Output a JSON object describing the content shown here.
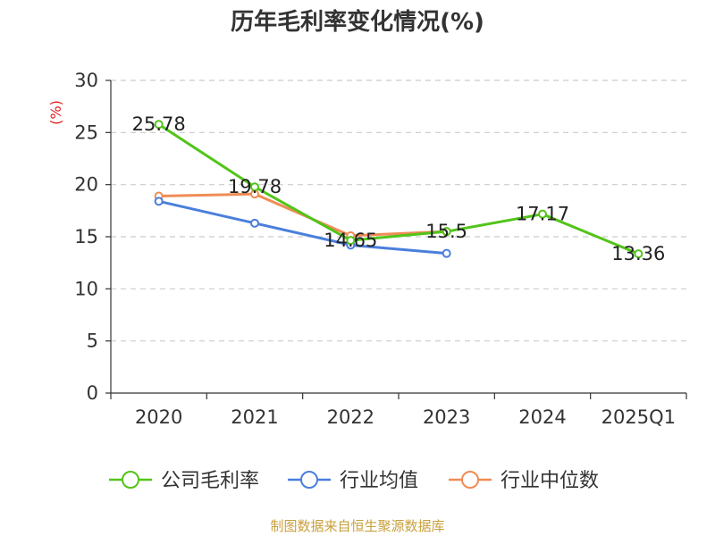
{
  "chart_data": {
    "type": "line",
    "title": "历年毛利率变化情况(%)",
    "ylabel": "(%)",
    "xlabel": "",
    "categories": [
      "2020",
      "2021",
      "2022",
      "2023",
      "2024",
      "2025Q1"
    ],
    "ylim": [
      0,
      30
    ],
    "yticks": [
      0,
      5,
      10,
      15,
      20,
      25,
      30
    ],
    "grid": "horizontal dashed",
    "legend_position": "bottom",
    "series": [
      {
        "name": "公司毛利率",
        "color": "#52c41a",
        "values": [
          25.78,
          19.78,
          14.65,
          15.5,
          17.17,
          13.36
        ],
        "show_labels": true
      },
      {
        "name": "行业均值",
        "color": "#4a7fdc",
        "values": [
          18.4,
          16.3,
          14.2,
          13.4,
          null,
          null
        ],
        "show_labels": false
      },
      {
        "name": "行业中位数",
        "color": "#f08c55",
        "values": [
          18.9,
          19.1,
          15.1,
          15.5,
          null,
          null
        ],
        "show_labels": false
      }
    ],
    "data_labels": [
      "25.78",
      "19.78",
      "14.65",
      "15.5",
      "17.17",
      "13.36"
    ]
  },
  "source": "制图数据来自恒生聚源数据库",
  "colors": {
    "axis": "#333333",
    "grid": "#cccccc",
    "ylabel": "#e02020",
    "source": "#c8a03c"
  }
}
